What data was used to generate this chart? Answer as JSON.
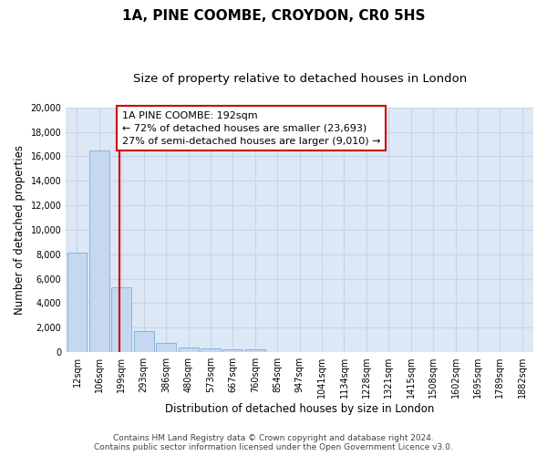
{
  "title": "1A, PINE COOMBE, CROYDON, CR0 5HS",
  "subtitle": "Size of property relative to detached houses in London",
  "xlabel": "Distribution of detached houses by size in London",
  "ylabel": "Number of detached properties",
  "footer_line1": "Contains HM Land Registry data © Crown copyright and database right 2024.",
  "footer_line2": "Contains public sector information licensed under the Open Government Licence v3.0.",
  "bar_labels": [
    "12sqm",
    "106sqm",
    "199sqm",
    "293sqm",
    "386sqm",
    "480sqm",
    "573sqm",
    "667sqm",
    "760sqm",
    "854sqm",
    "947sqm",
    "1041sqm",
    "1134sqm",
    "1228sqm",
    "1321sqm",
    "1415sqm",
    "1508sqm",
    "1602sqm",
    "1695sqm",
    "1789sqm",
    "1882sqm"
  ],
  "bar_values": [
    8100,
    16500,
    5300,
    1750,
    750,
    380,
    280,
    250,
    200,
    0,
    0,
    0,
    0,
    0,
    0,
    0,
    0,
    0,
    0,
    0,
    0
  ],
  "bar_color": "#c5d8f0",
  "bar_edge_color": "#7aafda",
  "vline_x": 1.92,
  "vline_color": "#cc0000",
  "annotation_text": "1A PINE COOMBE: 192sqm\n← 72% of detached houses are smaller (23,693)\n27% of semi-detached houses are larger (9,010) →",
  "annotation_box_color": "#cc0000",
  "ylim": [
    0,
    20000
  ],
  "yticks": [
    0,
    2000,
    4000,
    6000,
    8000,
    10000,
    12000,
    14000,
    16000,
    18000,
    20000
  ],
  "grid_color": "#c8d4e8",
  "bg_color": "#dce8f5",
  "title_fontsize": 11,
  "subtitle_fontsize": 9.5,
  "axis_label_fontsize": 8.5,
  "tick_fontsize": 7,
  "footer_fontsize": 6.5,
  "annotation_fontsize": 8
}
